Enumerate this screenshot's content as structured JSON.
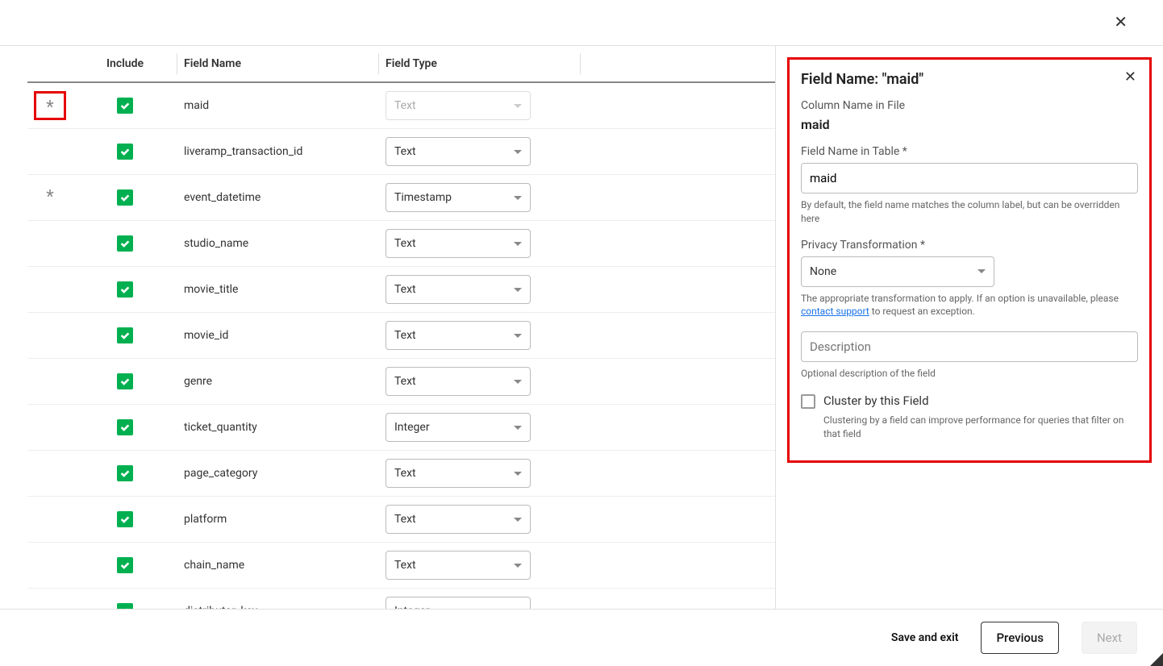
{
  "modal": {
    "close_glyph": "✕"
  },
  "table": {
    "headers": {
      "include": "Include",
      "field_name": "Field Name",
      "field_type": "Field Type"
    },
    "type_options": [
      "Text",
      "Timestamp",
      "Integer"
    ],
    "rows": [
      {
        "star": true,
        "star_highlight": true,
        "included": true,
        "name": "maid",
        "type": "Text",
        "type_disabled": true
      },
      {
        "star": false,
        "star_highlight": false,
        "included": true,
        "name": "liveramp_transaction_id",
        "type": "Text",
        "type_disabled": false
      },
      {
        "star": true,
        "star_highlight": false,
        "included": true,
        "name": "event_datetime",
        "type": "Timestamp",
        "type_disabled": false
      },
      {
        "star": false,
        "star_highlight": false,
        "included": true,
        "name": "studio_name",
        "type": "Text",
        "type_disabled": false
      },
      {
        "star": false,
        "star_highlight": false,
        "included": true,
        "name": "movie_title",
        "type": "Text",
        "type_disabled": false
      },
      {
        "star": false,
        "star_highlight": false,
        "included": true,
        "name": "movie_id",
        "type": "Text",
        "type_disabled": false
      },
      {
        "star": false,
        "star_highlight": false,
        "included": true,
        "name": "genre",
        "type": "Text",
        "type_disabled": false
      },
      {
        "star": false,
        "star_highlight": false,
        "included": true,
        "name": "ticket_quantity",
        "type": "Integer",
        "type_disabled": false
      },
      {
        "star": false,
        "star_highlight": false,
        "included": true,
        "name": "page_category",
        "type": "Text",
        "type_disabled": false
      },
      {
        "star": false,
        "star_highlight": false,
        "included": true,
        "name": "platform",
        "type": "Text",
        "type_disabled": false
      },
      {
        "star": false,
        "star_highlight": false,
        "included": true,
        "name": "chain_name",
        "type": "Text",
        "type_disabled": false
      },
      {
        "star": false,
        "star_highlight": false,
        "included": true,
        "name": "distributor_key",
        "type": "Integer",
        "type_disabled": false
      }
    ]
  },
  "detail": {
    "title_prefix": "Field Name: ",
    "title_value": "\"maid\"",
    "column_name_label": "Column Name in File",
    "column_name_value": "maid",
    "field_name_label": "Field Name in Table *",
    "field_name_value": "maid",
    "field_name_hint": "By default, the field name matches the column label, but can be overridden here",
    "privacy_label": "Privacy Transformation *",
    "privacy_value": "None",
    "privacy_hint_pre": "The appropriate transformation to apply. If an option is unavailable, please ",
    "privacy_hint_link": "contact support",
    "privacy_hint_post": " to request an exception.",
    "description_placeholder": "Description",
    "description_hint": "Optional description of the field",
    "cluster_label": "Cluster by this Field",
    "cluster_hint": "Clustering by a field can improve performance for queries that filter on that field",
    "cluster_checked": false
  },
  "footer": {
    "save_exit": "Save and exit",
    "previous": "Previous",
    "next": "Next",
    "next_disabled": true
  },
  "colors": {
    "highlight_border": "#e50000",
    "checkbox_bg": "#00b050",
    "link": "#1a73e8"
  }
}
